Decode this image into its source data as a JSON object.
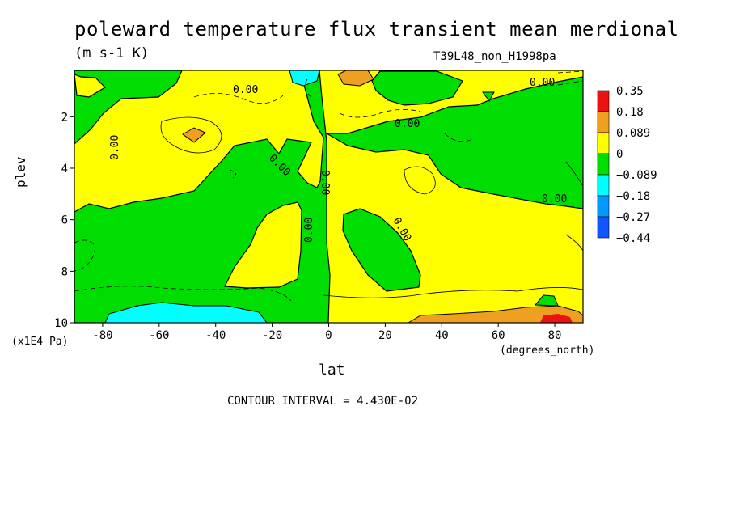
{
  "chart_data": {
    "type": "heatmap",
    "title": "poleward temperature flux transient mean merdional",
    "subtitle": "(m s-1 K)",
    "run_label": "T39L48_non_H1998pa",
    "xlabel": "lat",
    "xunit": "(degrees_north)",
    "ylabel": "plev",
    "yunit": "(x1E4 Pa)",
    "xlim": [
      -90,
      90
    ],
    "ylim": [
      10,
      0.2
    ],
    "x_ticks": [
      -80,
      -60,
      -40,
      -20,
      0,
      20,
      40,
      60,
      80
    ],
    "x_tick_labels": [
      "-80",
      "-60",
      "-40",
      "-20",
      "0",
      "20",
      "40",
      "60",
      "80"
    ],
    "y_ticks": [
      2,
      4,
      6,
      8,
      10
    ],
    "y_tick_labels": [
      "2",
      "4",
      "6",
      "8",
      "10"
    ],
    "contour_interval_text": "CONTOUR INTERVAL = 4.430E-02",
    "contour_label": "0.00",
    "colorbar": {
      "levels": [
        "0.35",
        "0.18",
        "0.089",
        "0",
        "−0.089",
        "−0.18",
        "−0.27",
        "−0.44"
      ],
      "colors": [
        "#ee1111",
        "#f0a020",
        "#ffff00",
        "#00dd00",
        "#00ffff",
        "#0099ff",
        "#1155ff"
      ]
    },
    "regions": [
      {
        "value_range": "0 to 0.089",
        "color": "#ffff00",
        "lat": [
          -45,
          -25
        ],
        "plev": [
          1,
          6
        ]
      },
      {
        "value_range": "0 to 0.089",
        "color": "#ffff00",
        "lat": [
          -25,
          -5
        ],
        "plev": [
          5.5,
          9
        ]
      },
      {
        "value_range": "0 to 0.089",
        "color": "#ffff00",
        "lat": [
          0,
          90
        ],
        "plev": [
          3,
          10
        ]
      },
      {
        "value_range": "-0.089 to 0",
        "color": "#00dd00",
        "lat": [
          -90,
          -45
        ],
        "plev": [
          0.2,
          10
        ]
      },
      {
        "value_range": "-0.089 to 0",
        "color": "#00dd00",
        "lat": [
          5,
          32
        ],
        "plev": [
          5.5,
          9
        ]
      },
      {
        "value_range": "-0.089 to 0",
        "color": "#00dd00",
        "lat": [
          25,
          90
        ],
        "plev": [
          0.5,
          5.5
        ]
      },
      {
        "value_range": "0.089 to 0.18",
        "color": "#f0a020",
        "lat": [
          -50,
          -45
        ],
        "plev": [
          2.4,
          2.8
        ]
      },
      {
        "value_range": "0.089 to 0.35",
        "color": "#f0a020",
        "lat": [
          30,
          90
        ],
        "plev": [
          9.5,
          10
        ]
      },
      {
        "value_range": "-0.18 to -0.089",
        "color": "#00ffff",
        "lat": [
          -70,
          -25
        ],
        "plev": [
          9.5,
          10
        ]
      }
    ]
  }
}
